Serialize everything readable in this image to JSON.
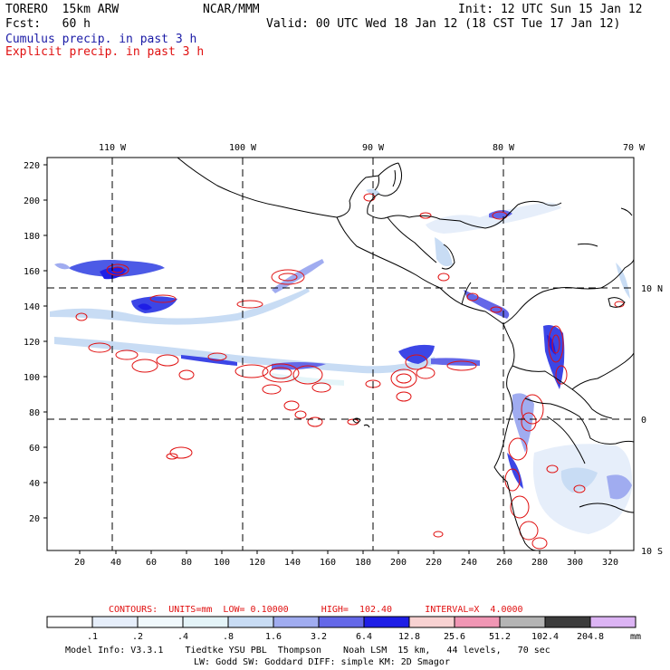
{
  "header": {
    "model": "TORERO  15km ARW",
    "org": "NCAR/MMM",
    "init": "Init: 12 UTC Sun 15 Jan 12",
    "fcst": "Fcst:   60 h",
    "valid": "Valid: 00 UTC Wed 18 Jan 12 (18 CST Tue 17 Jan 12)",
    "line_cumulus": "Cumulus precip. in past 3 h",
    "line_explicit": "Explicit precip. in past 3 h"
  },
  "map": {
    "lon_labels": [
      "110 W",
      "100 W",
      "90 W",
      "80 W",
      "70 W"
    ],
    "lat_labels": [
      "10 N",
      "0",
      "10 S"
    ],
    "x_ticks": [
      "20",
      "40",
      "60",
      "80",
      "100",
      "120",
      "140",
      "160",
      "180",
      "200",
      "220",
      "240",
      "260",
      "280",
      "300",
      "320"
    ],
    "y_ticks": [
      "220",
      "200",
      "180",
      "160",
      "140",
      "120",
      "100",
      "80",
      "60",
      "40",
      "20"
    ]
  },
  "contours_line": {
    "label": "CONTOURS:  UNITS=mm  LOW= 0.10000      HIGH=  102.40      INTERVAL=X  4.0000"
  },
  "colorbar": {
    "labels": [
      ".1",
      ".2",
      ".4",
      ".8",
      "1.6",
      "3.2",
      "6.4",
      "12.8",
      "25.6",
      "51.2",
      "102.4",
      "204.8"
    ],
    "unit": "mm",
    "colors": [
      "#ffffff",
      "#e6eefa",
      "#f0f8fc",
      "#e4f4f8",
      "#c8dcf4",
      "#a0acf0",
      "#6468e8",
      "#1e1ee6",
      "#f8d2d2",
      "#f096b4",
      "#b4b4b4",
      "#3c3c3c",
      "#dcb4f4"
    ]
  },
  "footer": {
    "line1": "Model Info: V3.3.1    Tiedtke YSU PBL  Thompson    Noah LSM  15 km,   44 levels,   70 sec",
    "line2": "LW: Godd SW: Goddard DIFF: simple KM: 2D Smagor"
  }
}
